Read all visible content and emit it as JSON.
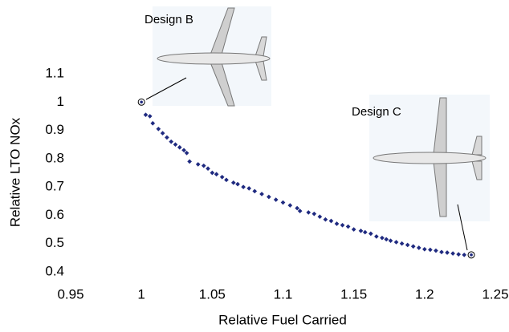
{
  "chart_data": {
    "type": "scatter",
    "x_label": "Relative Fuel Carried",
    "y_label": "Relative LTO NOx",
    "color": "#1f2a80",
    "x": [
      1.003,
      1.006,
      1.008,
      1.012,
      1.015,
      1.018,
      1.021,
      1.024,
      1.027,
      1.03,
      1.032,
      1.034,
      1.04,
      1.044,
      1.047,
      1.05,
      1.053,
      1.057,
      1.06,
      1.065,
      1.068,
      1.072,
      1.076,
      1.08,
      1.085,
      1.09,
      1.095,
      1.1,
      1.105,
      1.11,
      1.112,
      1.118,
      1.122,
      1.126,
      1.13,
      1.134,
      1.138,
      1.142,
      1.146,
      1.15,
      1.155,
      1.158,
      1.162,
      1.166,
      1.17,
      1.173,
      1.176,
      1.18,
      1.184,
      1.188,
      1.192,
      1.196,
      1.2,
      1.204,
      1.208,
      1.212,
      1.216,
      1.22,
      1.224,
      1.228
    ],
    "values": [
      0.955,
      0.95,
      0.925,
      0.905,
      0.89,
      0.875,
      0.86,
      0.85,
      0.84,
      0.83,
      0.82,
      0.79,
      0.78,
      0.775,
      0.765,
      0.75,
      0.745,
      0.735,
      0.725,
      0.715,
      0.71,
      0.7,
      0.695,
      0.685,
      0.675,
      0.665,
      0.655,
      0.645,
      0.635,
      0.625,
      0.615,
      0.61,
      0.605,
      0.595,
      0.585,
      0.58,
      0.57,
      0.565,
      0.56,
      0.55,
      0.545,
      0.54,
      0.535,
      0.525,
      0.52,
      0.515,
      0.51,
      0.505,
      0.5,
      0.495,
      0.49,
      0.485,
      0.48,
      0.478,
      0.475,
      0.47,
      0.468,
      0.465,
      0.462,
      0.46
    ],
    "annotations": [
      {
        "text": "Design B",
        "x": 1,
        "y": 1
      },
      {
        "text": "Design C",
        "x": 1.233,
        "y": 0.46
      }
    ],
    "xlim": [
      0.95,
      1.25
    ],
    "xticks": [
      0.95,
      1,
      1.05,
      1.1,
      1.15,
      1.2,
      1.25
    ],
    "ylim": [
      0.4,
      1.1
    ],
    "yticks": [
      0.4,
      0.5,
      0.6,
      0.7,
      0.8,
      0.9,
      1,
      1.1
    ],
    "grid": false
  }
}
